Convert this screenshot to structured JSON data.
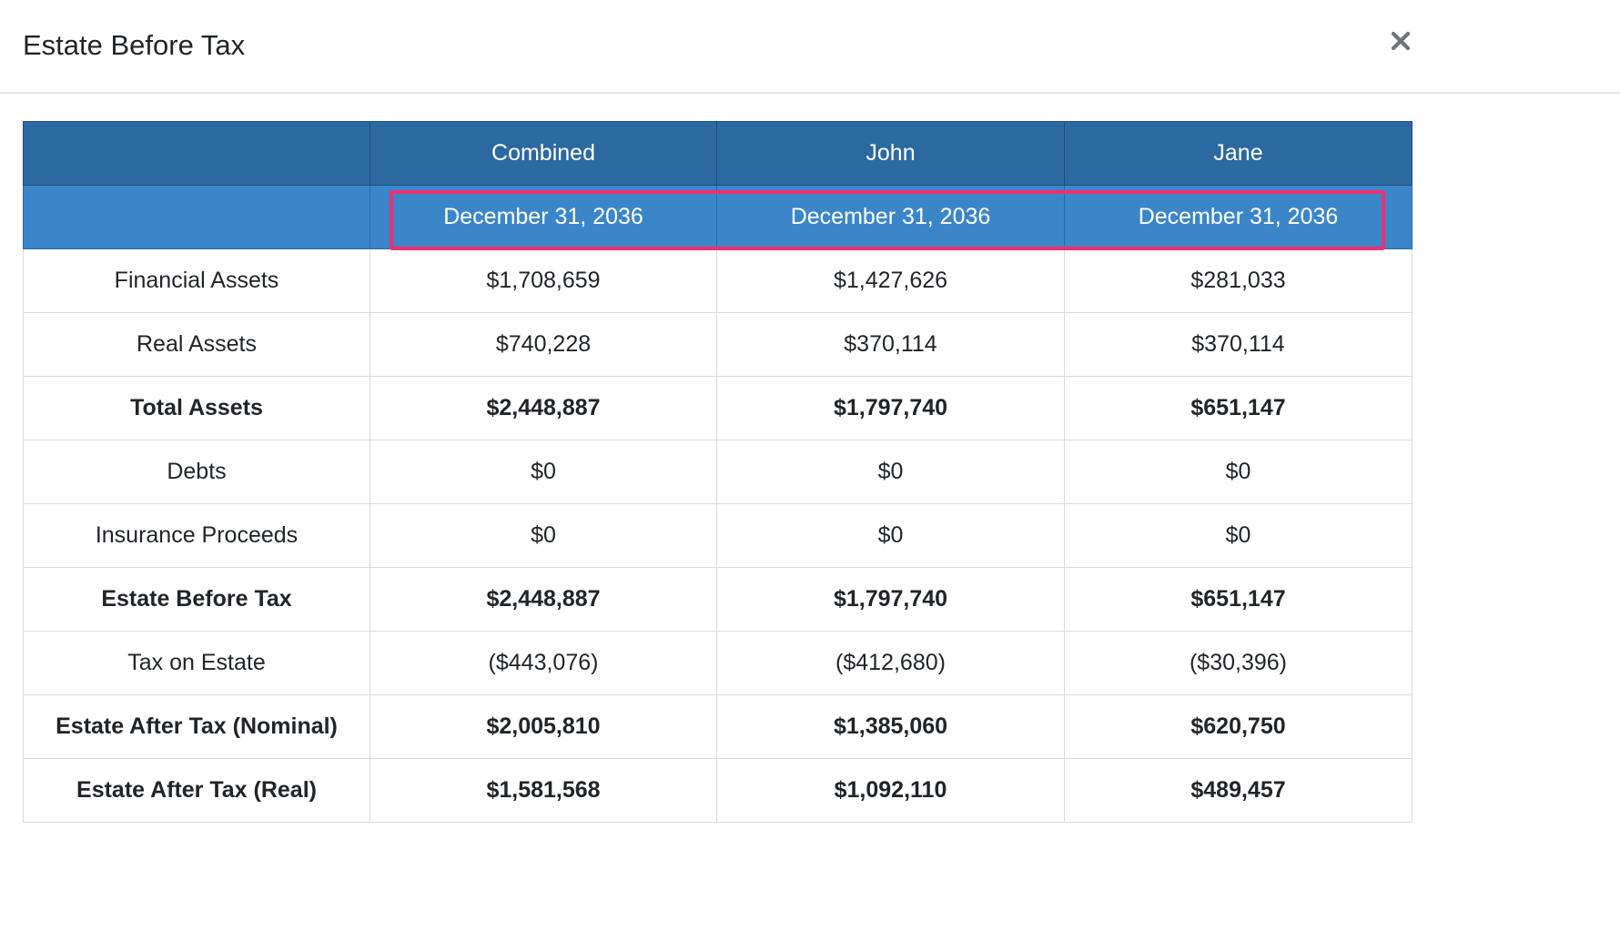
{
  "modal": {
    "title": "Estate Before Tax",
    "close_icon": "close-icon"
  },
  "table": {
    "columns": [
      "",
      "Combined",
      "John",
      "Jane"
    ],
    "dates": [
      "",
      "December 31, 2036",
      "December 31, 2036",
      "December 31, 2036"
    ],
    "rows": [
      {
        "label": "Financial Assets",
        "values": [
          "$1,708,659",
          "$1,427,626",
          "$281,033"
        ],
        "bold": false
      },
      {
        "label": "Real Assets",
        "values": [
          "$740,228",
          "$370,114",
          "$370,114"
        ],
        "bold": false
      },
      {
        "label": "Total Assets",
        "values": [
          "$2,448,887",
          "$1,797,740",
          "$651,147"
        ],
        "bold": true
      },
      {
        "label": "Debts",
        "values": [
          "$0",
          "$0",
          "$0"
        ],
        "bold": false
      },
      {
        "label": "Insurance Proceeds",
        "values": [
          "$0",
          "$0",
          "$0"
        ],
        "bold": false
      },
      {
        "label": "Estate Before Tax",
        "values": [
          "$2,448,887",
          "$1,797,740",
          "$651,147"
        ],
        "bold": true
      },
      {
        "label": "Tax on Estate",
        "values": [
          "($443,076)",
          "($412,680)",
          "($30,396)"
        ],
        "bold": false
      },
      {
        "label": "Estate After Tax (Nominal)",
        "values": [
          "$2,005,810",
          "$1,385,060",
          "$620,750"
        ],
        "bold": true
      },
      {
        "label": "Estate After Tax (Real)",
        "values": [
          "$1,581,568",
          "$1,092,110",
          "$489,457"
        ],
        "bold": true
      }
    ]
  },
  "colors": {
    "header_bg": "#2d69a1",
    "date_row_bg": "#3b86c9",
    "highlight": "#ef2f73"
  }
}
